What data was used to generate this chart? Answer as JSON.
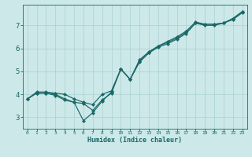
{
  "xlabel": "Humidex (Indice chaleur)",
  "xlim": [
    -0.5,
    23.5
  ],
  "ylim": [
    2.5,
    7.9
  ],
  "bg_color": "#cce8e8",
  "grid_color": "#aad0d0",
  "line_color": "#1a6868",
  "xticks": [
    0,
    1,
    2,
    3,
    4,
    5,
    6,
    7,
    8,
    9,
    10,
    11,
    12,
    13,
    14,
    15,
    16,
    17,
    18,
    19,
    20,
    21,
    22,
    23
  ],
  "yticks": [
    3,
    4,
    5,
    6,
    7
  ],
  "line1_x": [
    0,
    1,
    2,
    3,
    4,
    5,
    6,
    7,
    8,
    9,
    10,
    11,
    12,
    13,
    14,
    15,
    16,
    17,
    18,
    19,
    20,
    21,
    22,
    23
  ],
  "line1_y": [
    3.8,
    4.05,
    4.05,
    3.95,
    3.75,
    3.65,
    3.6,
    3.3,
    3.75,
    4.05,
    5.1,
    4.65,
    5.4,
    5.8,
    6.05,
    6.2,
    6.4,
    6.65,
    7.1,
    7.0,
    7.0,
    7.1,
    7.25,
    7.55
  ],
  "line2_x": [
    0,
    1,
    2,
    3,
    4,
    5,
    6,
    7,
    8,
    9,
    10,
    11,
    12,
    13,
    14,
    15,
    16,
    17,
    18,
    19,
    20,
    21,
    22,
    23
  ],
  "line2_y": [
    3.8,
    4.05,
    4.05,
    4.0,
    3.8,
    3.65,
    2.85,
    3.2,
    3.7,
    4.1,
    5.1,
    4.65,
    5.45,
    5.8,
    6.1,
    6.25,
    6.45,
    6.7,
    7.1,
    7.05,
    7.05,
    7.1,
    7.3,
    7.6
  ],
  "line3_x": [
    0,
    1,
    2,
    3,
    4,
    5,
    6,
    7,
    8,
    9,
    10,
    11,
    12,
    13,
    14,
    15,
    16,
    17,
    18,
    19,
    20,
    21,
    22,
    23
  ],
  "line3_y": [
    3.8,
    4.1,
    4.1,
    4.05,
    4.0,
    3.8,
    3.65,
    3.55,
    4.0,
    4.15,
    5.1,
    4.65,
    5.5,
    5.85,
    6.1,
    6.3,
    6.5,
    6.75,
    7.15,
    7.05,
    7.05,
    7.1,
    7.3,
    7.6
  ]
}
